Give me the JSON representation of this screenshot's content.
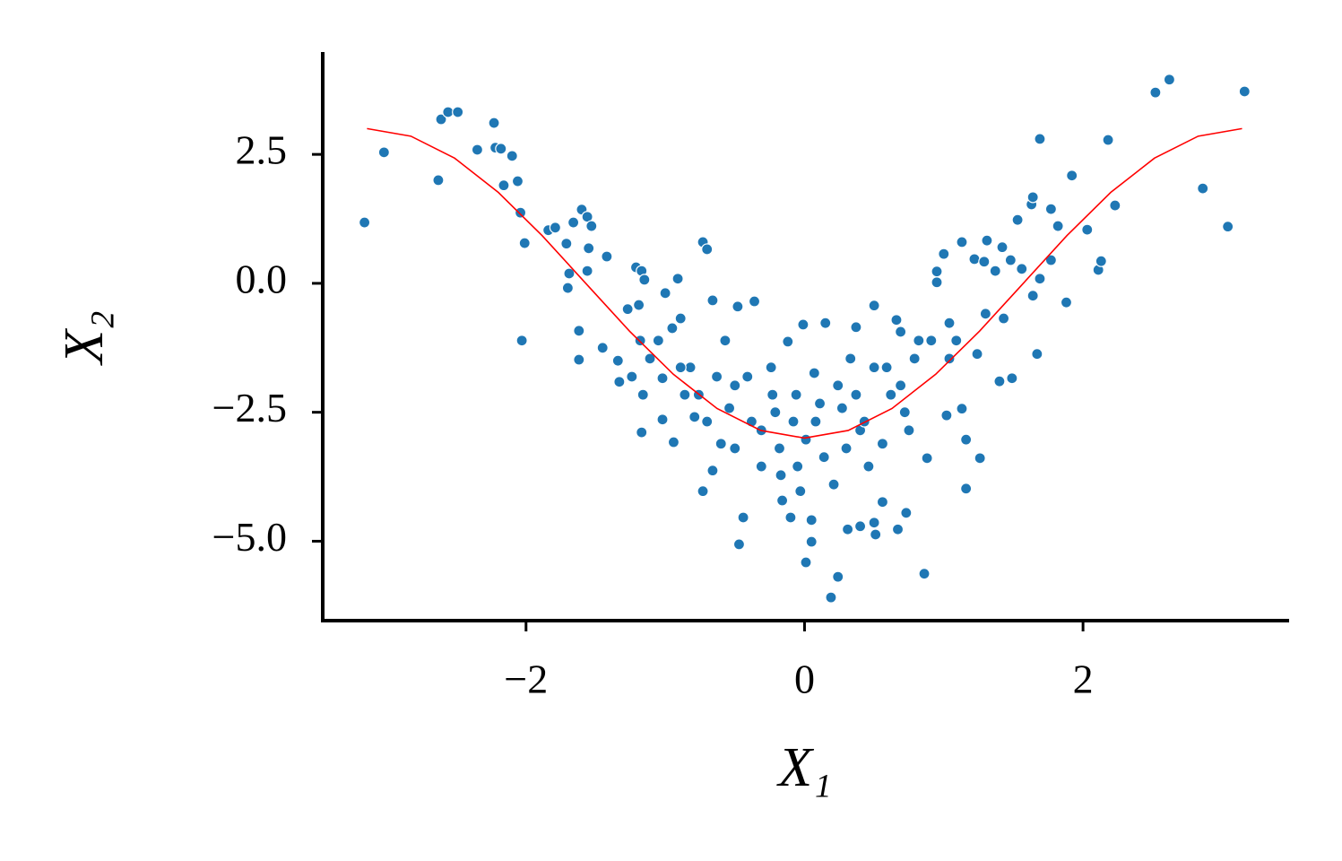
{
  "chart_data": {
    "type": "scatter",
    "xlabel": "X₁",
    "ylabel": "X₂",
    "xlim": [
      -3.46,
      3.48
    ],
    "ylim": [
      -6.54,
      4.45
    ],
    "xticks": [
      {
        "value": -2,
        "label": "−2"
      },
      0,
      2
    ],
    "yticks": [
      {
        "value": -5,
        "label": "−5.0"
      },
      {
        "value": -2.5,
        "label": "−2.5"
      },
      {
        "value": 0,
        "label": "0.0"
      },
      2.5
    ],
    "series": [
      {
        "type": "scatter",
        "color": "#1f77b4",
        "x": [
          -3.16,
          -3.02,
          -2.63,
          -2.61,
          -2.56,
          -2.49,
          -2.35,
          -2.23,
          -2.22,
          -2.18,
          -2.16,
          -2.1,
          -2.06,
          -2.04,
          -2.01,
          -2.03,
          -1.84,
          -1.79,
          -1.71,
          -1.66,
          -1.6,
          -1.56,
          -1.53,
          -1.55,
          -1.56,
          -1.7,
          -1.69,
          -1.62,
          -1.62,
          -1.42,
          -1.45,
          -1.34,
          -1.33,
          -1.21,
          -1.17,
          -1.19,
          -1.15,
          -1.18,
          -1.16,
          -1.17,
          -1.0,
          -0.91,
          -0.95,
          -1.02,
          -1.02,
          -0.94,
          -0.73,
          -0.7,
          -0.66,
          -0.82,
          -0.89,
          -0.76,
          -0.7,
          -0.73,
          -0.66,
          -0.57,
          -0.48,
          -0.5,
          -0.5,
          -0.47,
          -0.44,
          -0.41,
          -0.36,
          -0.31,
          -0.24,
          -0.21,
          -0.17,
          -0.16,
          -0.12,
          -0.1,
          -0.06,
          -0.03,
          -0.01,
          0.01,
          0.05,
          0.05,
          0.01,
          0.07,
          0.11,
          0.15,
          0.21,
          0.19,
          0.24,
          0.27,
          0.31,
          0.33,
          0.37,
          0.4,
          0.4,
          0.46,
          0.5,
          0.5,
          0.51,
          0.56,
          0.59,
          0.66,
          0.67,
          0.73,
          0.72,
          0.79,
          0.86,
          0.88,
          0.91,
          0.95,
          0.95,
          1.0,
          1.02,
          1.04,
          1.09,
          1.13,
          1.16,
          1.13,
          1.16,
          1.22,
          1.26,
          1.29,
          1.31,
          1.37,
          1.42,
          1.48,
          1.53,
          1.49,
          1.4,
          1.63,
          1.64,
          1.64,
          1.69,
          1.67,
          1.69,
          1.77,
          1.77,
          1.82,
          1.88,
          1.92,
          2.03,
          2.11,
          2.13,
          2.18,
          2.23,
          2.52,
          2.62,
          2.86,
          3.04,
          3.16,
          -1.27,
          -1.24,
          -1.11,
          -1.05,
          -0.89,
          -0.86,
          -0.79,
          -0.63,
          -0.6,
          -0.54,
          -0.38,
          -0.31,
          -0.23,
          -0.18,
          -0.08,
          -0.05,
          0.08,
          0.14,
          0.24,
          0.3,
          0.37,
          0.43,
          0.5,
          0.56,
          0.62,
          0.69,
          0.75,
          0.82,
          0.69,
          1.04,
          1.24,
          1.3,
          1.43,
          1.56
        ],
        "y": [
          1.18,
          2.54,
          2.0,
          3.18,
          3.32,
          3.32,
          2.59,
          3.11,
          2.63,
          2.61,
          1.9,
          2.47,
          1.98,
          1.37,
          0.78,
          -1.11,
          1.03,
          1.08,
          0.77,
          1.18,
          1.43,
          1.29,
          1.11,
          0.68,
          0.24,
          -0.09,
          0.19,
          -0.92,
          -1.48,
          0.52,
          -1.25,
          -1.5,
          -1.91,
          0.31,
          0.24,
          -0.42,
          0.07,
          -1.11,
          -2.16,
          -2.89,
          -0.19,
          0.09,
          -0.87,
          -1.84,
          -2.64,
          -3.08,
          0.8,
          0.66,
          -0.33,
          -1.63,
          -1.63,
          -2.16,
          -2.68,
          -4.03,
          -3.63,
          -1.11,
          -0.45,
          -1.98,
          -3.2,
          -5.06,
          -4.54,
          -1.81,
          -0.35,
          -2.85,
          -1.63,
          -2.5,
          -3.72,
          -4.21,
          -1.13,
          -4.54,
          -2.16,
          -4.03,
          -0.8,
          -3.03,
          -4.59,
          -5.01,
          -5.41,
          -1.74,
          -2.33,
          -0.77,
          -3.9,
          -6.09,
          -5.69,
          -2.42,
          -4.77,
          -1.46,
          -0.85,
          -4.71,
          -2.85,
          -3.55,
          -0.43,
          -4.64,
          -4.87,
          -4.24,
          -1.63,
          -0.71,
          -4.77,
          -4.45,
          -2.5,
          -1.46,
          -5.63,
          -3.39,
          -1.11,
          0.23,
          0.02,
          0.57,
          -2.56,
          -0.77,
          -1.11,
          0.8,
          -3.03,
          -2.43,
          -3.98,
          0.47,
          -3.39,
          0.42,
          0.83,
          0.24,
          0.7,
          0.45,
          1.23,
          -1.84,
          -1.9,
          1.53,
          1.67,
          -0.24,
          0.09,
          -1.37,
          2.8,
          1.44,
          0.45,
          1.11,
          -0.37,
          2.09,
          1.04,
          0.26,
          0.43,
          2.78,
          1.51,
          3.7,
          3.95,
          1.84,
          1.1,
          3.72,
          -0.5,
          -1.81,
          -1.46,
          -1.11,
          -0.68,
          -2.16,
          -2.59,
          -1.81,
          -3.11,
          -2.42,
          -2.68,
          -3.55,
          -2.16,
          -3.2,
          -2.68,
          -3.55,
          -2.68,
          -3.37,
          -1.98,
          -3.2,
          -2.16,
          -2.68,
          -1.63,
          -3.11,
          -2.16,
          -1.98,
          -2.85,
          -1.11,
          -0.94,
          -1.46,
          -1.37,
          -0.59,
          -0.68,
          0.28
        ]
      },
      {
        "type": "line",
        "color": "#ff0000",
        "x": [
          -3.142,
          -2.827,
          -2.513,
          -2.199,
          -1.885,
          -1.571,
          -1.257,
          -0.942,
          -0.628,
          -0.314,
          0,
          0.314,
          0.628,
          0.942,
          1.257,
          1.571,
          1.885,
          2.199,
          2.513,
          2.827,
          3.142
        ],
        "y": [
          3,
          2.853,
          2.427,
          1.763,
          0.927,
          0,
          -0.927,
          -1.763,
          -2.427,
          -2.853,
          -3,
          -2.853,
          -2.427,
          -1.763,
          -0.927,
          0,
          0.927,
          1.763,
          2.427,
          2.853,
          3
        ]
      }
    ]
  }
}
